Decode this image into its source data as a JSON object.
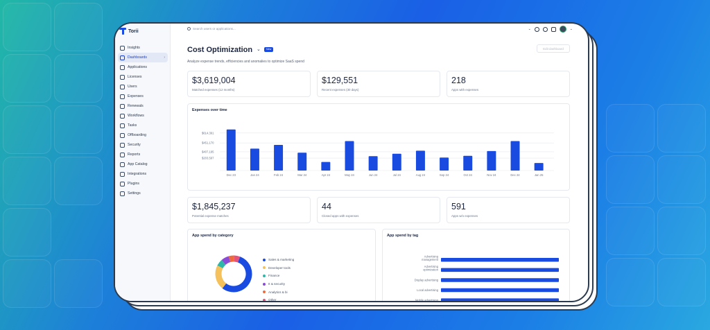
{
  "app": {
    "brand": "Torii"
  },
  "sidebar": {
    "items": [
      {
        "label": "Insights",
        "icon": "bar-chart-icon"
      },
      {
        "label": "Dashboards",
        "icon": "dashboard-icon",
        "active": true
      },
      {
        "label": "Applications",
        "icon": "apps-icon"
      },
      {
        "label": "Licenses",
        "icon": "license-icon"
      },
      {
        "label": "Users",
        "icon": "users-icon"
      },
      {
        "label": "Expenses",
        "icon": "dollar-icon"
      },
      {
        "label": "Renewals",
        "icon": "calendar-icon"
      },
      {
        "label": "Workflows",
        "icon": "workflow-icon"
      },
      {
        "label": "Tasks",
        "icon": "tasks-icon"
      },
      {
        "label": "Offboarding",
        "icon": "offboarding-icon"
      },
      {
        "label": "Security",
        "icon": "shield-icon"
      },
      {
        "label": "Reports",
        "icon": "report-icon"
      },
      {
        "label": "App Catalog",
        "icon": "catalog-icon"
      },
      {
        "label": "Integrations",
        "icon": "integrations-icon"
      },
      {
        "label": "Plugins",
        "icon": "plugin-icon"
      },
      {
        "label": "Settings",
        "icon": "gear-icon"
      }
    ]
  },
  "topbar": {
    "search_placeholder": "Search users or applications..."
  },
  "header": {
    "title": "Cost Optimization",
    "badge": "New",
    "edit_label": "Edit dashboard",
    "subtitle": "Analyze expense trends, efficiencies and anomalies to optimize SaaS spend"
  },
  "kpis_top": [
    {
      "value": "$3,619,004",
      "label": "Matched expenses (12 months)"
    },
    {
      "value": "$129,551",
      "label": "Recent expenses (30 days)"
    },
    {
      "value": "218",
      "label": "Apps with expenses"
    }
  ],
  "kpis_mid": [
    {
      "value": "$1,845,237",
      "label": "Potential expense matches"
    },
    {
      "value": "44",
      "label": "Closed apps with expenses"
    },
    {
      "value": "591",
      "label": "Apps w/o expenses"
    }
  ],
  "expenses_title": "Expenses over time",
  "category_title": "App spend by category",
  "tag_title": "App spend by tag",
  "colors": {
    "accent": "#1a4be0"
  },
  "chart_data": [
    {
      "type": "bar",
      "title": "Expenses over time",
      "categories": [
        "Dec 23",
        "Jan 24",
        "Feb 24",
        "Mar 24",
        "Apr 24",
        "May 24",
        "Jun 24",
        "Jul 24",
        "Aug 24",
        "Sep 24",
        "Oct 24",
        "Nov 24",
        "Dec 24",
        "Jan 25"
      ],
      "values": [
        600000,
        320000,
        375000,
        260000,
        125000,
        430000,
        210000,
        245000,
        290000,
        190000,
        215000,
        285000,
        430000,
        110000
      ],
      "y_ticks": [
        "$614,391",
        "$451,170",
        "$407,195",
        "$203,597"
      ],
      "ylim": [
        0,
        680000
      ],
      "grid": true
    },
    {
      "type": "pie",
      "title": "App spend by category",
      "labels": [
        "Sales & marketing",
        "Developer tools",
        "Finance",
        "It & security",
        "Analytics & bi",
        "Other"
      ],
      "values": [
        55,
        22,
        6,
        7,
        5,
        5
      ],
      "colors": [
        "#1a4be0",
        "#f5c15c",
        "#2db7a8",
        "#8c4ad8",
        "#ee6a3c",
        "#e4527a"
      ]
    },
    {
      "type": "bar",
      "orientation": "horizontal",
      "title": "App spend by tag",
      "categories": [
        "Advertising management",
        "Advertising optimization",
        "Display advertising",
        "Local advertising",
        "Mobile advertising"
      ],
      "values": [
        100,
        100,
        100,
        100,
        100
      ]
    }
  ]
}
